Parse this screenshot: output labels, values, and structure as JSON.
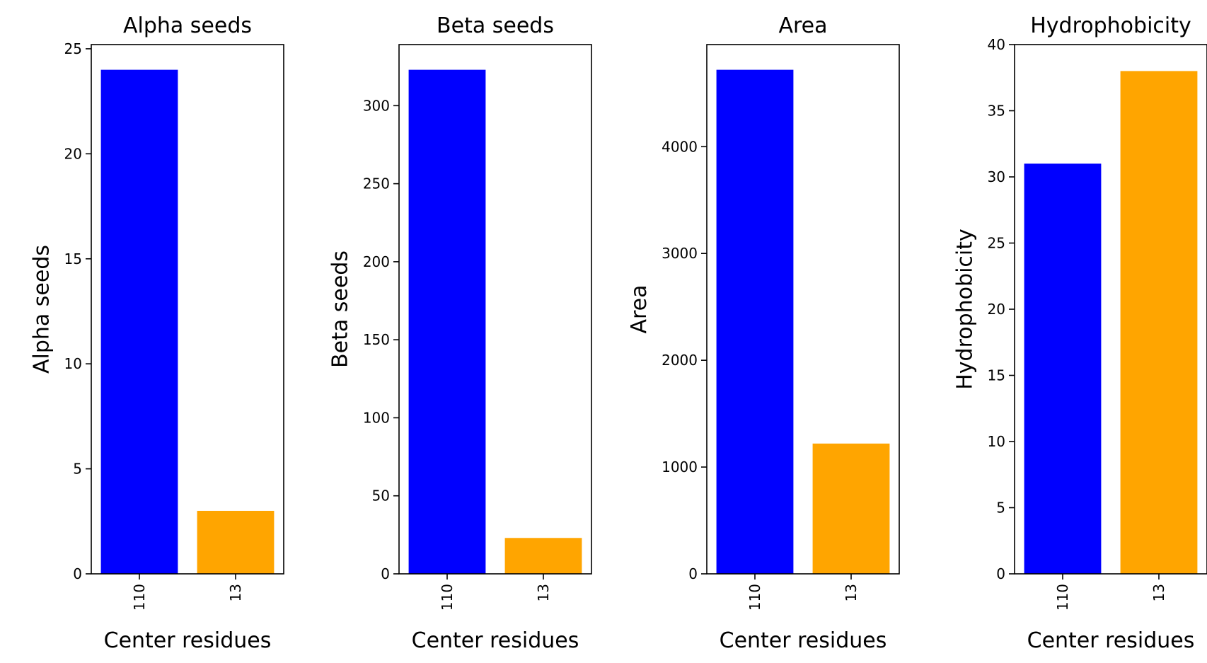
{
  "chart_data": [
    {
      "type": "bar",
      "title": "Alpha seeds",
      "xlabel": "Center residues",
      "ylabel": "Alpha seeds",
      "categories": [
        "110",
        "13"
      ],
      "values": [
        24,
        3
      ],
      "bar_colors": [
        "#0000ff",
        "#ffa500"
      ],
      "ylim": [
        0,
        25.2
      ],
      "yticks": [
        0,
        5,
        10,
        15,
        20,
        25
      ],
      "grid": false,
      "x_tick_rotation": "vertical"
    },
    {
      "type": "bar",
      "title": "Beta seeds",
      "xlabel": "Center residues",
      "ylabel": "Beta seeds",
      "categories": [
        "110",
        "13"
      ],
      "values": [
        323,
        23
      ],
      "bar_colors": [
        "#0000ff",
        "#ffa500"
      ],
      "ylim": [
        0,
        339.15
      ],
      "yticks": [
        0,
        50,
        100,
        150,
        200,
        250,
        300
      ],
      "grid": false,
      "x_tick_rotation": "vertical"
    },
    {
      "type": "bar",
      "title": "Area",
      "xlabel": "Center residues",
      "ylabel": "Area",
      "categories": [
        "110",
        "13"
      ],
      "values": [
        4720,
        1220
      ],
      "bar_colors": [
        "#0000ff",
        "#ffa500"
      ],
      "ylim": [
        0,
        4956
      ],
      "yticks": [
        0,
        1000,
        2000,
        3000,
        4000
      ],
      "grid": false,
      "x_tick_rotation": "vertical"
    },
    {
      "type": "bar",
      "title": "Hydrophobicity",
      "xlabel": "Center residues",
      "ylabel": "Hydrophobicity",
      "categories": [
        "110",
        "13"
      ],
      "values": [
        31,
        38
      ],
      "bar_colors": [
        "#0000ff",
        "#ffa500"
      ],
      "ylim": [
        0,
        40
      ],
      "yticks": [
        0,
        5,
        10,
        15,
        20,
        25,
        30,
        35,
        40
      ],
      "grid": false,
      "x_tick_rotation": "vertical"
    }
  ]
}
